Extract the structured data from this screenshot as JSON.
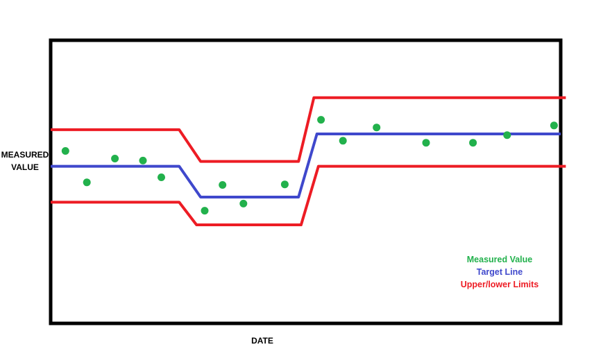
{
  "chart_data": {
    "type": "line",
    "title": "",
    "xlabel": "DATE",
    "ylabel": "MEASURED VALUE",
    "ylabel_lines": [
      "MEASURED",
      "VALUE"
    ],
    "xlim": [
      0,
      100
    ],
    "ylim": [
      0,
      100
    ],
    "grid": false,
    "legend_position": "bottom-right",
    "legend": [
      {
        "label": "Measured Value",
        "color": "#22b14c"
      },
      {
        "label": "Target Line",
        "color": "#3f48cc"
      },
      {
        "label": "Upper/lower Limits",
        "color": "#ed1c24"
      }
    ],
    "series": [
      {
        "kind": "line",
        "role": "target",
        "color": "#3f48cc",
        "x": [
          0,
          25.2,
          29.4,
          48.6,
          52.2,
          100
        ],
        "y": [
          55.5,
          55.5,
          44.6,
          44.6,
          66.9,
          66.9
        ]
      },
      {
        "kind": "line",
        "role": "upper-limit",
        "color": "#ed1c24",
        "x": [
          0,
          25.2,
          29.4,
          48.6,
          51.6,
          101
        ],
        "y": [
          68.4,
          68.4,
          57.2,
          57.2,
          79.7,
          79.7
        ]
      },
      {
        "kind": "line",
        "role": "lower-limit",
        "color": "#ed1c24",
        "x": [
          0,
          25.2,
          28.6,
          49.1,
          52.5,
          101
        ],
        "y": [
          42.8,
          42.8,
          34.8,
          34.8,
          55.5,
          55.5
        ]
      },
      {
        "kind": "scatter",
        "role": "measured",
        "color": "#22b14c",
        "x": [
          2.9,
          7.1,
          12.6,
          18.1,
          21.7,
          30.2,
          33.7,
          37.8,
          45.9,
          53.0,
          57.3,
          63.9,
          73.6,
          82.8,
          89.5,
          98.7
        ],
        "y": [
          60.9,
          49.8,
          58.2,
          57.5,
          51.6,
          39.8,
          48.9,
          42.3,
          49.1,
          71.9,
          64.5,
          69.2,
          63.8,
          63.8,
          66.5,
          69.9
        ]
      }
    ]
  }
}
